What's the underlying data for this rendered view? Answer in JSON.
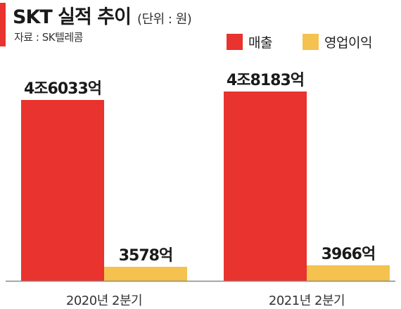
{
  "header": {
    "title": "SKT 실적 추이",
    "unit": "(단위 : 원)",
    "source": "자료 : SK텔레콤"
  },
  "colors": {
    "accent": "#e8332e",
    "revenue": "#e8332e",
    "operating_profit": "#f5c24f",
    "axis": "#888888"
  },
  "chart_data": {
    "type": "bar",
    "categories": [
      "2020년 2분기",
      "2021년 2분기"
    ],
    "series": [
      {
        "name": "매출",
        "values": [
          46033,
          48183
        ],
        "labels": [
          "4조6033억",
          "4조8183억"
        ]
      },
      {
        "name": "영업이익",
        "values": [
          3578,
          3966
        ],
        "labels": [
          "3578억",
          "3966억"
        ]
      }
    ],
    "unit": "억원",
    "grid": false,
    "legend_position": "top-right"
  }
}
